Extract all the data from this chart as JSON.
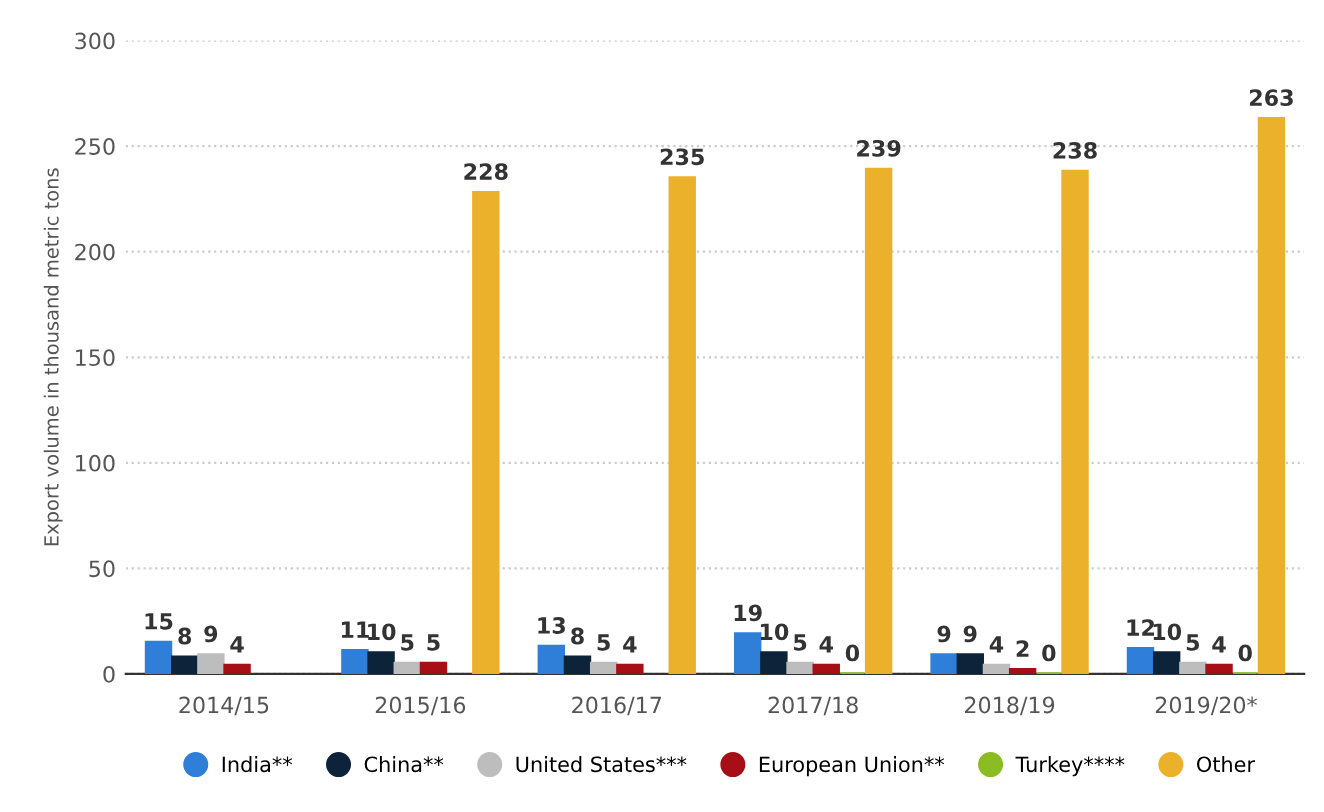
{
  "chart_data": {
    "type": "bar",
    "ylabel": "Export volume in thousand metric tons",
    "categories": [
      "2014/15",
      "2015/16",
      "2016/17",
      "2017/18",
      "2018/19",
      "2019/20*"
    ],
    "series": [
      {
        "name": "India**",
        "color": "#2f7ed8",
        "values": [
          15,
          11,
          13,
          19,
          9,
          12
        ]
      },
      {
        "name": "China**",
        "color": "#0d233a",
        "values": [
          8,
          10,
          8,
          10,
          9,
          10
        ]
      },
      {
        "name": "United States***",
        "color": "#bdbdbd",
        "values": [
          9,
          5,
          5,
          5,
          4,
          5
        ]
      },
      {
        "name": "European Union**",
        "color": "#a50f15",
        "values": [
          4,
          5,
          4,
          4,
          2,
          4
        ]
      },
      {
        "name": "Turkey****",
        "color": "#8bbc21",
        "values": [
          null,
          null,
          null,
          0,
          0,
          0
        ]
      },
      {
        "name": "Other",
        "color": "#ecb12a",
        "values": [
          null,
          228,
          235,
          239,
          238,
          263
        ]
      }
    ],
    "ylim": [
      0,
      300
    ],
    "yticks": [
      0,
      50,
      100,
      150,
      200,
      250,
      300
    ],
    "grid": "y",
    "legend": "bottom",
    "data_labels": true
  }
}
